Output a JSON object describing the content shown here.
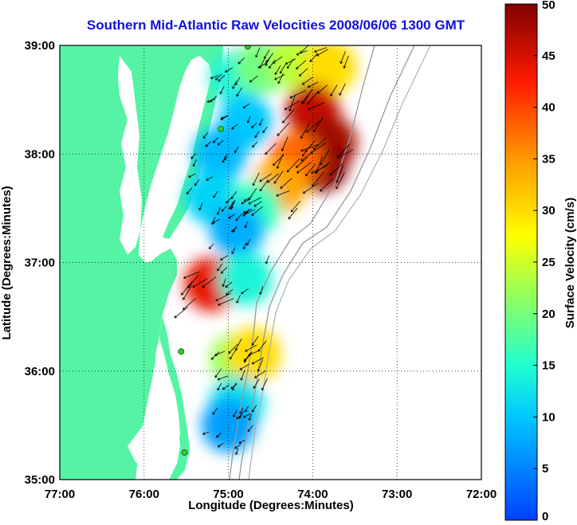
{
  "chart_data": {
    "type": "heatmap",
    "title": "Southern Mid-Atlantic Raw Velocities 2008/06/06 1300 GMT",
    "xlabel": "Longitude (Degrees:Minutes)",
    "ylabel": "Latitude (Degrees:Minutes)",
    "x_ticks": [
      "77:00",
      "76:00",
      "75:00",
      "74:00",
      "73:00",
      "72:00"
    ],
    "y_ticks": [
      "39:00",
      "38:00",
      "37:00",
      "36:00",
      "35:00"
    ],
    "xlim": [
      -77,
      -72
    ],
    "ylim": [
      35,
      39
    ],
    "grid": true,
    "colorbar": {
      "label": "Surface Velocity (cm/s)",
      "range": [
        0,
        50
      ],
      "ticks": [
        "0",
        "5",
        "10",
        "15",
        "20",
        "25",
        "30",
        "35",
        "40",
        "45",
        "50"
      ],
      "colormap": "jet"
    },
    "regions": [
      {
        "lon": -74.9,
        "lat": 38.7,
        "speed": 14
      },
      {
        "lon": -74.6,
        "lat": 38.8,
        "speed": 20
      },
      {
        "lon": -74.2,
        "lat": 38.85,
        "speed": 24
      },
      {
        "lon": -73.8,
        "lat": 38.8,
        "speed": 30
      },
      {
        "lon": -74.0,
        "lat": 38.4,
        "speed": 46
      },
      {
        "lon": -73.8,
        "lat": 38.1,
        "speed": 48
      },
      {
        "lon": -73.9,
        "lat": 37.9,
        "speed": 49
      },
      {
        "lon": -74.2,
        "lat": 37.95,
        "speed": 38
      },
      {
        "lon": -74.4,
        "lat": 37.7,
        "speed": 34
      },
      {
        "lon": -74.8,
        "lat": 38.3,
        "speed": 10
      },
      {
        "lon": -75.1,
        "lat": 38.0,
        "speed": 9
      },
      {
        "lon": -75.2,
        "lat": 37.6,
        "speed": 11
      },
      {
        "lon": -74.7,
        "lat": 37.5,
        "speed": 16
      },
      {
        "lon": -74.9,
        "lat": 37.3,
        "speed": 8
      },
      {
        "lon": -75.2,
        "lat": 36.8,
        "speed": 44
      },
      {
        "lon": -74.8,
        "lat": 36.85,
        "speed": 14
      },
      {
        "lon": -74.9,
        "lat": 36.1,
        "speed": 22
      },
      {
        "lon": -74.7,
        "lat": 36.15,
        "speed": 30
      },
      {
        "lon": -74.9,
        "lat": 35.7,
        "speed": 12
      },
      {
        "lon": -75.0,
        "lat": 35.5,
        "speed": 7
      }
    ],
    "colors": {
      "land": "#55f4a4",
      "water": "#ffffff",
      "title": "#1010dd",
      "bathymetry": "#999999",
      "station": "#33cc33"
    }
  }
}
